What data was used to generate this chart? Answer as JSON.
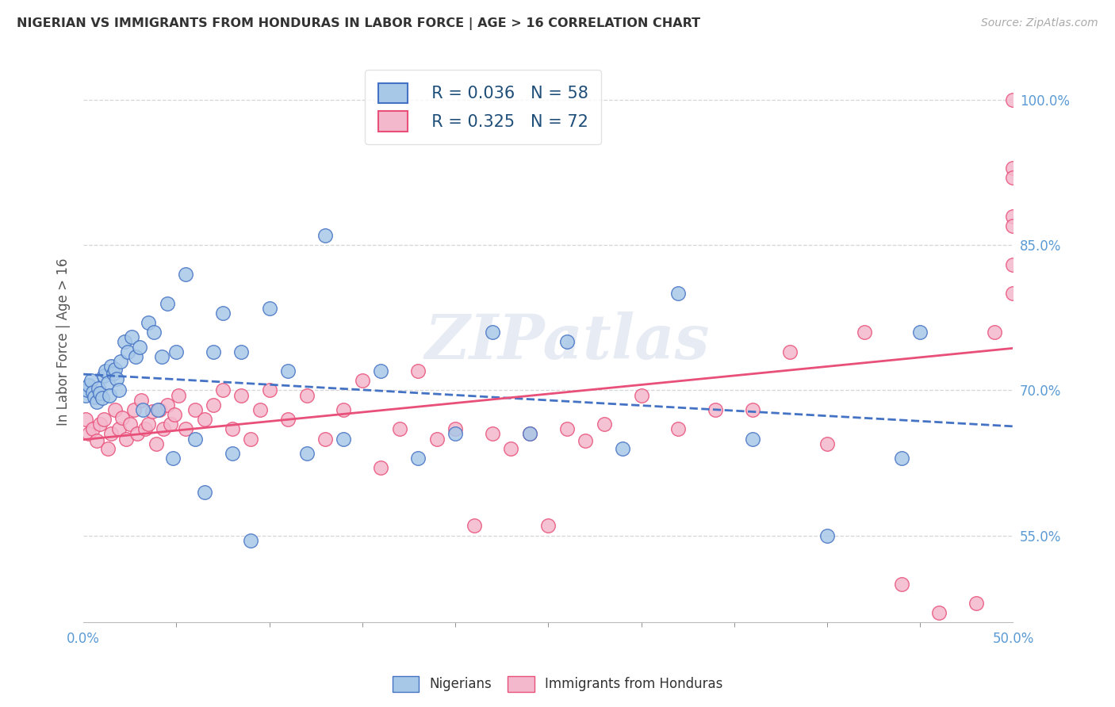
{
  "title": "NIGERIAN VS IMMIGRANTS FROM HONDURAS IN LABOR FORCE | AGE > 16 CORRELATION CHART",
  "source": "Source: ZipAtlas.com",
  "ylabel": "In Labor Force | Age > 16",
  "xmin": 0.0,
  "xmax": 0.5,
  "ymin": 0.46,
  "ymax": 1.04,
  "yticks": [
    0.55,
    0.7,
    0.85,
    1.0
  ],
  "ytick_labels": [
    "55.0%",
    "70.0%",
    "85.0%",
    "100.0%"
  ],
  "xtick_left_label": "0.0%",
  "xtick_right_label": "50.0%",
  "color_nigerian": "#a8c8e8",
  "color_honduras": "#f4b8cc",
  "color_line_nigerian": "#4472c4",
  "color_line_honduras": "#e8507a",
  "watermark": "ZIPatlas",
  "legend_r_nigerian": "R = 0.036",
  "legend_n_nigerian": "N = 58",
  "legend_r_honduras": "R = 0.325",
  "legend_n_honduras": "N = 72",
  "nigerian_x": [
    0.001,
    0.002,
    0.003,
    0.004,
    0.005,
    0.006,
    0.007,
    0.008,
    0.009,
    0.01,
    0.011,
    0.012,
    0.013,
    0.014,
    0.015,
    0.016,
    0.017,
    0.018,
    0.019,
    0.02,
    0.022,
    0.024,
    0.026,
    0.028,
    0.03,
    0.032,
    0.035,
    0.038,
    0.04,
    0.042,
    0.045,
    0.048,
    0.05,
    0.055,
    0.06,
    0.065,
    0.07,
    0.075,
    0.08,
    0.085,
    0.09,
    0.1,
    0.11,
    0.12,
    0.13,
    0.14,
    0.16,
    0.18,
    0.2,
    0.22,
    0.24,
    0.26,
    0.29,
    0.32,
    0.36,
    0.4,
    0.44,
    0.45
  ],
  "nigerian_y": [
    0.695,
    0.7,
    0.705,
    0.71,
    0.698,
    0.693,
    0.688,
    0.702,
    0.697,
    0.692,
    0.715,
    0.72,
    0.708,
    0.695,
    0.725,
    0.718,
    0.722,
    0.712,
    0.7,
    0.73,
    0.75,
    0.74,
    0.755,
    0.735,
    0.745,
    0.68,
    0.77,
    0.76,
    0.68,
    0.735,
    0.79,
    0.63,
    0.74,
    0.82,
    0.65,
    0.595,
    0.74,
    0.78,
    0.635,
    0.74,
    0.545,
    0.785,
    0.72,
    0.635,
    0.86,
    0.65,
    0.72,
    0.63,
    0.655,
    0.76,
    0.655,
    0.75,
    0.64,
    0.8,
    0.65,
    0.55,
    0.63,
    0.76
  ],
  "honduras_x": [
    0.001,
    0.003,
    0.005,
    0.007,
    0.009,
    0.011,
    0.013,
    0.015,
    0.017,
    0.019,
    0.021,
    0.023,
    0.025,
    0.027,
    0.029,
    0.031,
    0.033,
    0.035,
    0.037,
    0.039,
    0.041,
    0.043,
    0.045,
    0.047,
    0.049,
    0.051,
    0.055,
    0.06,
    0.065,
    0.07,
    0.075,
    0.08,
    0.085,
    0.09,
    0.095,
    0.1,
    0.11,
    0.12,
    0.13,
    0.14,
    0.15,
    0.16,
    0.17,
    0.18,
    0.19,
    0.2,
    0.21,
    0.22,
    0.23,
    0.24,
    0.25,
    0.26,
    0.27,
    0.28,
    0.3,
    0.32,
    0.34,
    0.36,
    0.38,
    0.4,
    0.42,
    0.44,
    0.46,
    0.48,
    0.49,
    0.5,
    0.5,
    0.5,
    0.5,
    0.5,
    0.5,
    0.5
  ],
  "honduras_y": [
    0.67,
    0.655,
    0.66,
    0.648,
    0.665,
    0.67,
    0.64,
    0.655,
    0.68,
    0.66,
    0.672,
    0.65,
    0.665,
    0.68,
    0.655,
    0.69,
    0.66,
    0.665,
    0.678,
    0.645,
    0.68,
    0.66,
    0.685,
    0.665,
    0.675,
    0.695,
    0.66,
    0.68,
    0.67,
    0.685,
    0.7,
    0.66,
    0.695,
    0.65,
    0.68,
    0.7,
    0.67,
    0.695,
    0.65,
    0.68,
    0.71,
    0.62,
    0.66,
    0.72,
    0.65,
    0.66,
    0.56,
    0.655,
    0.64,
    0.655,
    0.56,
    0.66,
    0.648,
    0.665,
    0.695,
    0.66,
    0.68,
    0.68,
    0.74,
    0.645,
    0.76,
    0.5,
    0.47,
    0.48,
    0.76,
    0.93,
    0.88,
    0.92,
    0.83,
    0.8,
    0.87,
    1.0
  ]
}
